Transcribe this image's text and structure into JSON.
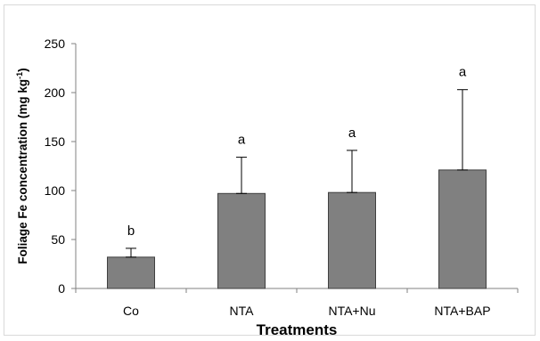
{
  "chart_data": {
    "type": "bar",
    "categories": [
      "Co",
      "NTA",
      "NTA+Nu",
      "NTA+BAP"
    ],
    "values": [
      32,
      97,
      98,
      121
    ],
    "error_upper": [
      41,
      134,
      141,
      203
    ],
    "significance_letters": [
      "b",
      "a",
      "a",
      "a"
    ],
    "xlabel": "Treatments",
    "ylabel_prefix": "Foliage Fe concentration (mg kg",
    "ylabel_superscript": "-1",
    "ylabel_suffix": ")",
    "ylim": [
      0,
      250
    ],
    "yticks": [
      0,
      50,
      100,
      150,
      200,
      250
    ],
    "yticks_labels": [
      "0",
      "50",
      "100",
      "150",
      "200",
      "250"
    ],
    "grid": false,
    "bar_color": "#808080",
    "bar_edge_color": "#404040"
  }
}
